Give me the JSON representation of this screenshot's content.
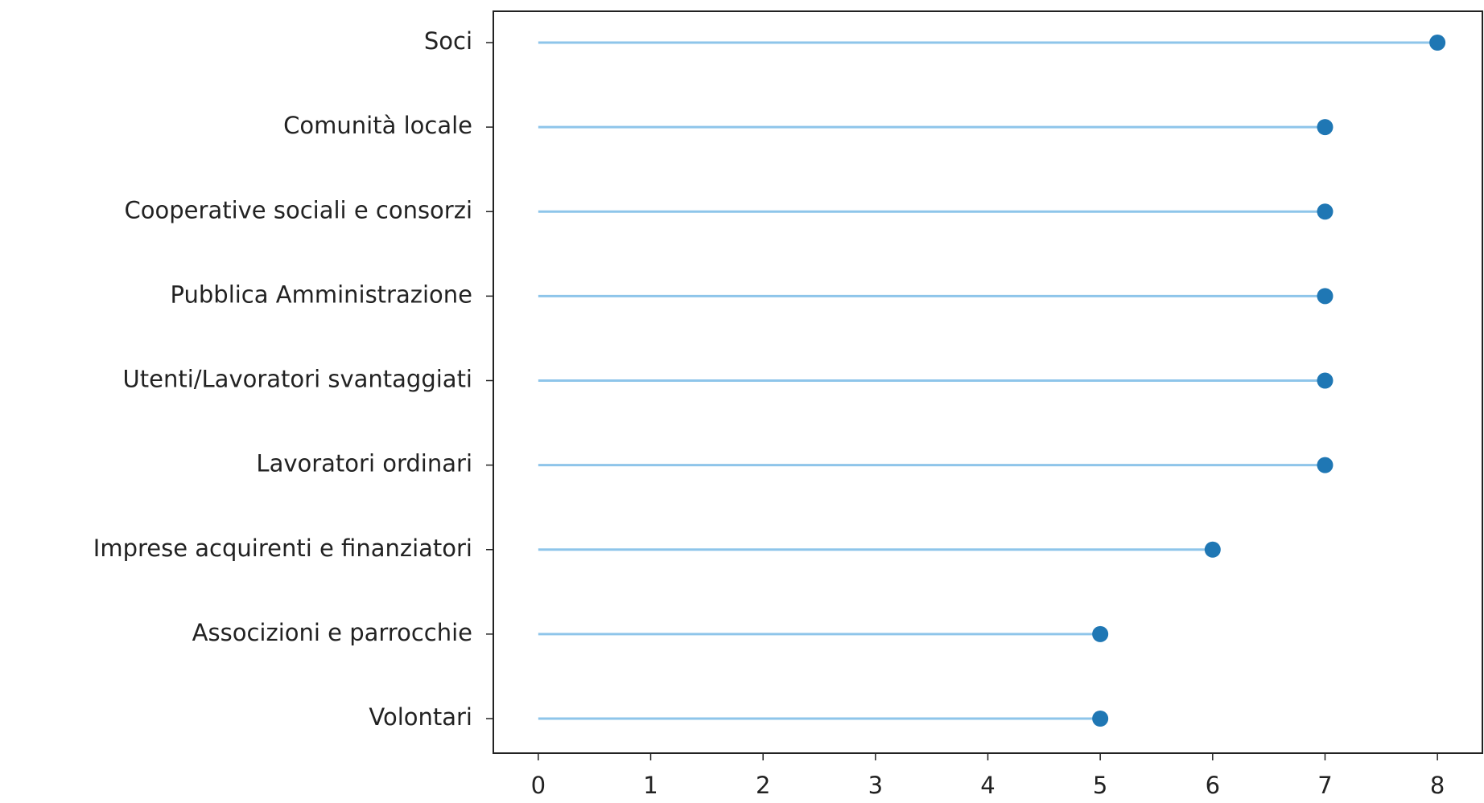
{
  "chart_data": {
    "type": "lollipop",
    "categories": [
      "Soci",
      "Comunità locale",
      "Cooperative sociali e consorzi",
      "Pubblica Amministrazione",
      "Utenti/Lavoratori svantaggiati",
      "Lavoratori ordinari",
      "Imprese acquirenti e finanziatori",
      "Associzioni e parrocchie",
      "Volontari"
    ],
    "values": [
      8,
      7,
      7,
      7,
      7,
      7,
      6,
      5,
      5
    ],
    "color": "#1f77b4",
    "stem_color": "#8ec5ea",
    "xlim": [
      -0.4,
      8.4
    ],
    "xticks": [
      0,
      1,
      2,
      3,
      4,
      5,
      6,
      7,
      8
    ],
    "grid": false
  }
}
